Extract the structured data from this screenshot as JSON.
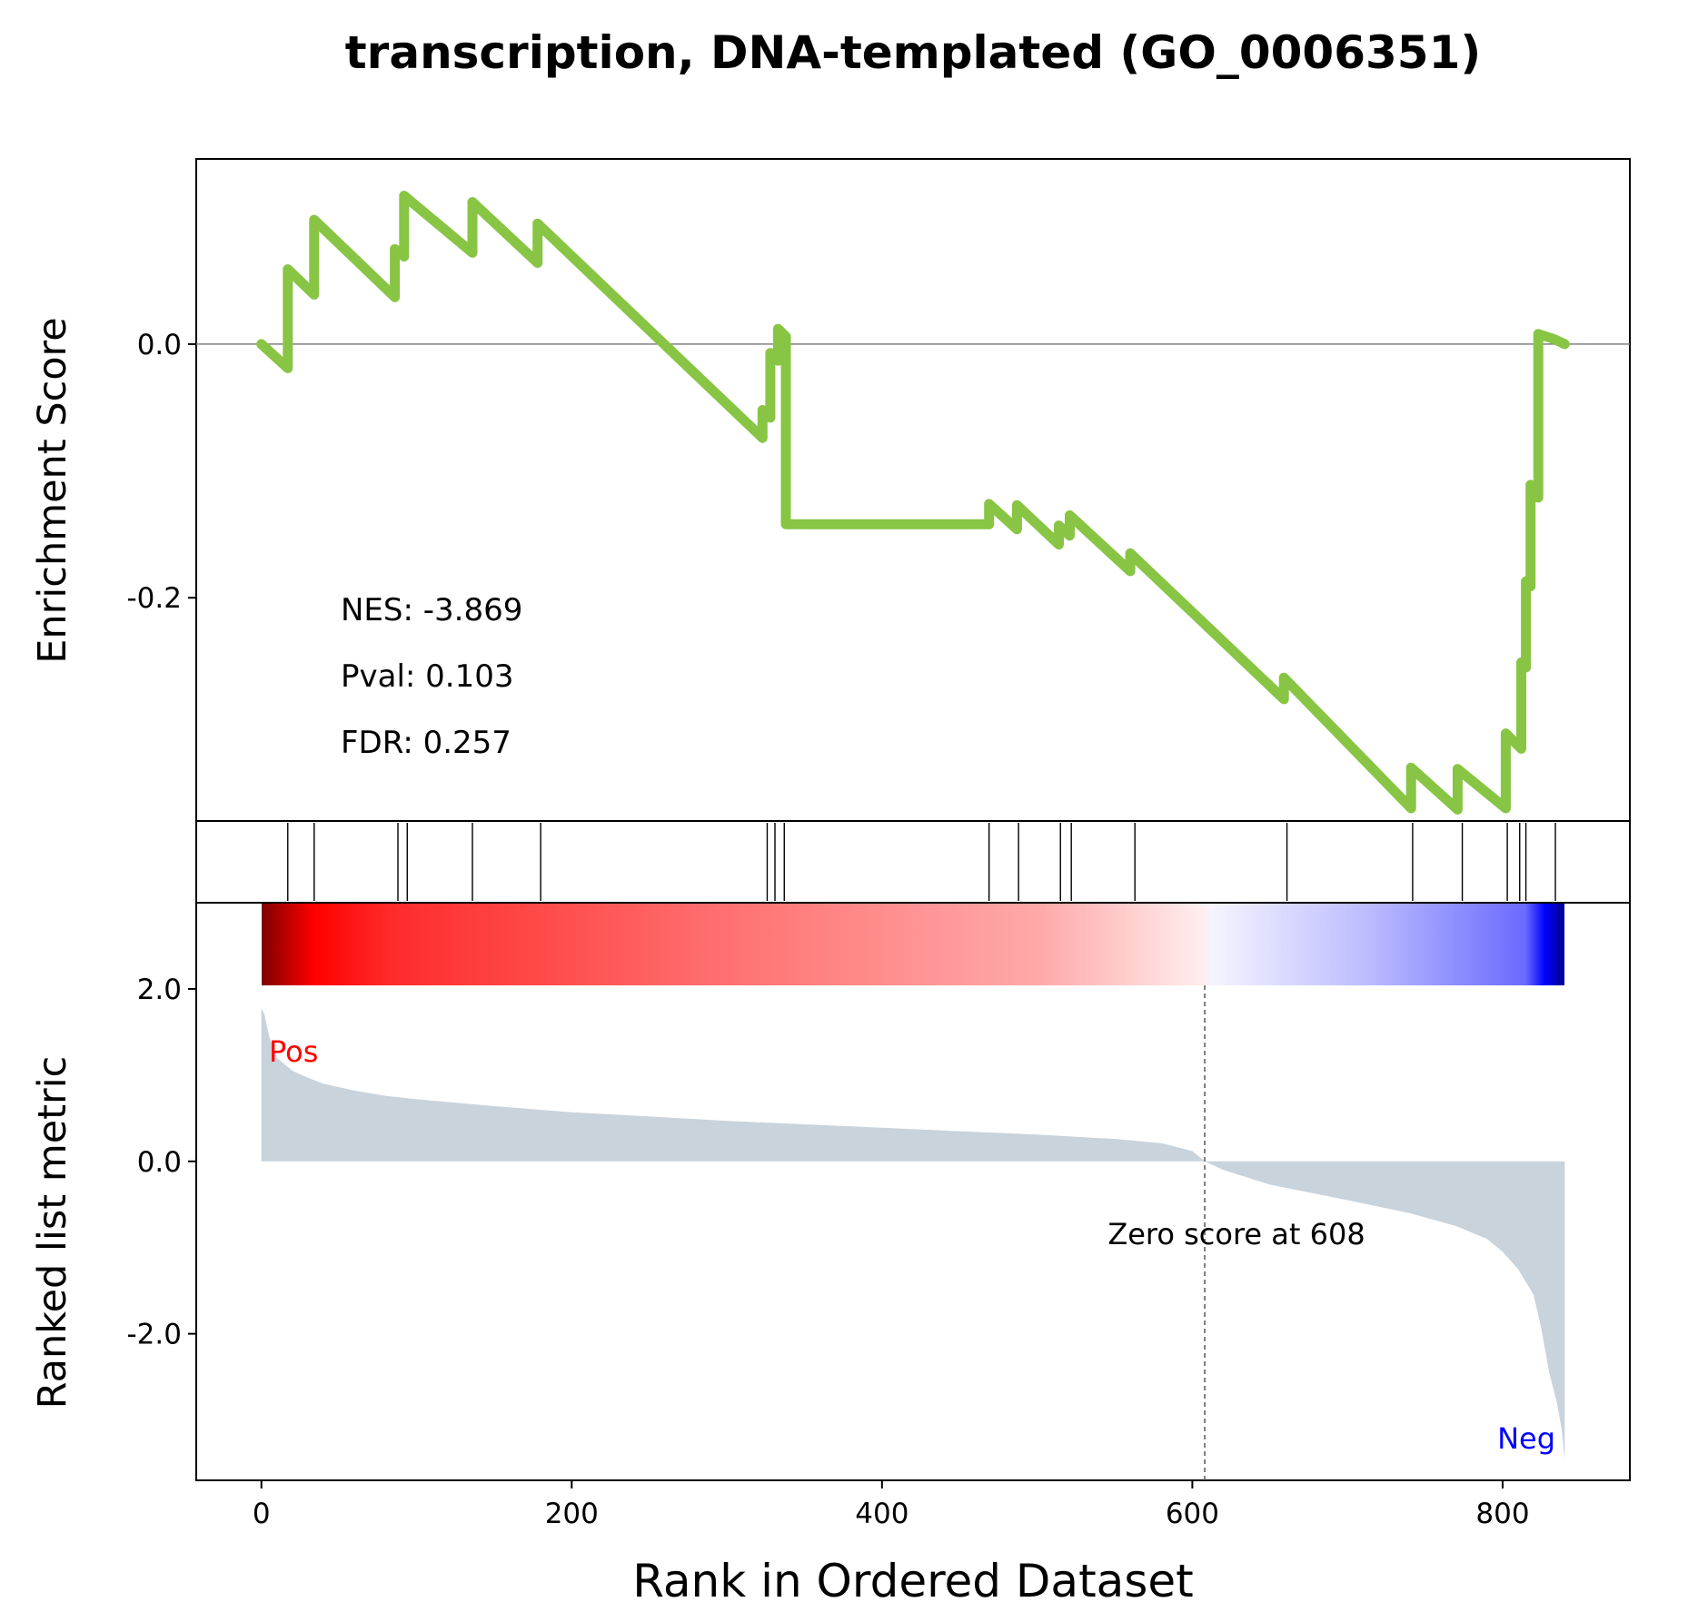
{
  "chart_data": {
    "type": "line",
    "title": "transcription, DNA-templated (GO_0006351)",
    "xlabel": "Rank in Ordered Dataset",
    "xlim": [
      -42,
      882
    ],
    "xticks": [
      0,
      200,
      400,
      600,
      800
    ],
    "colors": {
      "es_line": "#88c544",
      "metric_fill": "#c8d3dc",
      "pos": "#ff0000",
      "neg": "#0000ff"
    },
    "es_panel": {
      "ylabel": "Enrichment Score",
      "ylim": [
        -0.376,
        0.146
      ],
      "yticks": [
        {
          "value": 0.0,
          "label": "0.0"
        },
        {
          "value": -0.2,
          "label": "-0.2"
        }
      ],
      "stats": {
        "nes": "NES: -3.869",
        "pval": "Pval: 0.103",
        "fdr": "FDR: 0.257"
      },
      "running_es": {
        "x": [
          0,
          17,
          17,
          34,
          34,
          86,
          86,
          92,
          92,
          136,
          136,
          178,
          178,
          323,
          323,
          328,
          328,
          333,
          333,
          338,
          338,
          469,
          469,
          487,
          487,
          514,
          514,
          521,
          521,
          560,
          560,
          659,
          659,
          741,
          741,
          771,
          771,
          802,
          802,
          812,
          812,
          815,
          815,
          818,
          818,
          823,
          823,
          833,
          833,
          840
        ],
        "y": [
          0.0,
          -0.019,
          0.059,
          0.039,
          0.098,
          0.037,
          0.075,
          0.069,
          0.117,
          0.072,
          0.112,
          0.064,
          0.095,
          -0.074,
          -0.052,
          -0.058,
          -0.007,
          -0.013,
          0.012,
          0.006,
          -0.142,
          -0.142,
          -0.126,
          -0.146,
          -0.127,
          -0.158,
          -0.143,
          -0.151,
          -0.135,
          -0.179,
          -0.165,
          -0.28,
          -0.263,
          -0.366,
          -0.334,
          -0.367,
          -0.335,
          -0.366,
          -0.307,
          -0.319,
          -0.251,
          -0.255,
          -0.187,
          -0.191,
          -0.111,
          -0.121,
          0.008,
          0.004,
          0.004,
          0.0
        ]
      }
    },
    "hits": [
      17,
      34,
      88,
      94,
      136,
      180,
      326,
      331,
      337,
      469,
      488,
      515,
      522,
      563,
      661,
      742,
      774,
      803,
      811,
      815,
      834
    ],
    "metric_panel": {
      "ylabel": "Ranked list metric",
      "ylim": [
        -3.7,
        3.0
      ],
      "yticks": [
        {
          "value": 2.0,
          "label": "2.0"
        },
        {
          "value": 0.0,
          "label": "0.0"
        },
        {
          "value": -2.0,
          "label": "-2.0"
        }
      ],
      "pos_label": "Pos",
      "neg_label": "Neg",
      "zero_score_rank": 608,
      "zero_score_text": "Zero score at 608",
      "ranked_metric": {
        "x": [
          0,
          2,
          5,
          10,
          20,
          30,
          40,
          60,
          80,
          100,
          150,
          200,
          250,
          300,
          350,
          400,
          450,
          500,
          550,
          580,
          600,
          608,
          620,
          650,
          700,
          740,
          770,
          790,
          800,
          810,
          820,
          825,
          830,
          835,
          838,
          840
        ],
        "y": [
          1.78,
          1.7,
          1.45,
          1.2,
          1.05,
          0.97,
          0.9,
          0.82,
          0.76,
          0.72,
          0.64,
          0.57,
          0.52,
          0.47,
          0.43,
          0.39,
          0.35,
          0.31,
          0.26,
          0.21,
          0.12,
          0.0,
          -0.1,
          -0.27,
          -0.45,
          -0.6,
          -0.75,
          -0.9,
          -1.05,
          -1.25,
          -1.55,
          -1.95,
          -2.45,
          -2.8,
          -3.1,
          -3.45
        ]
      }
    }
  }
}
